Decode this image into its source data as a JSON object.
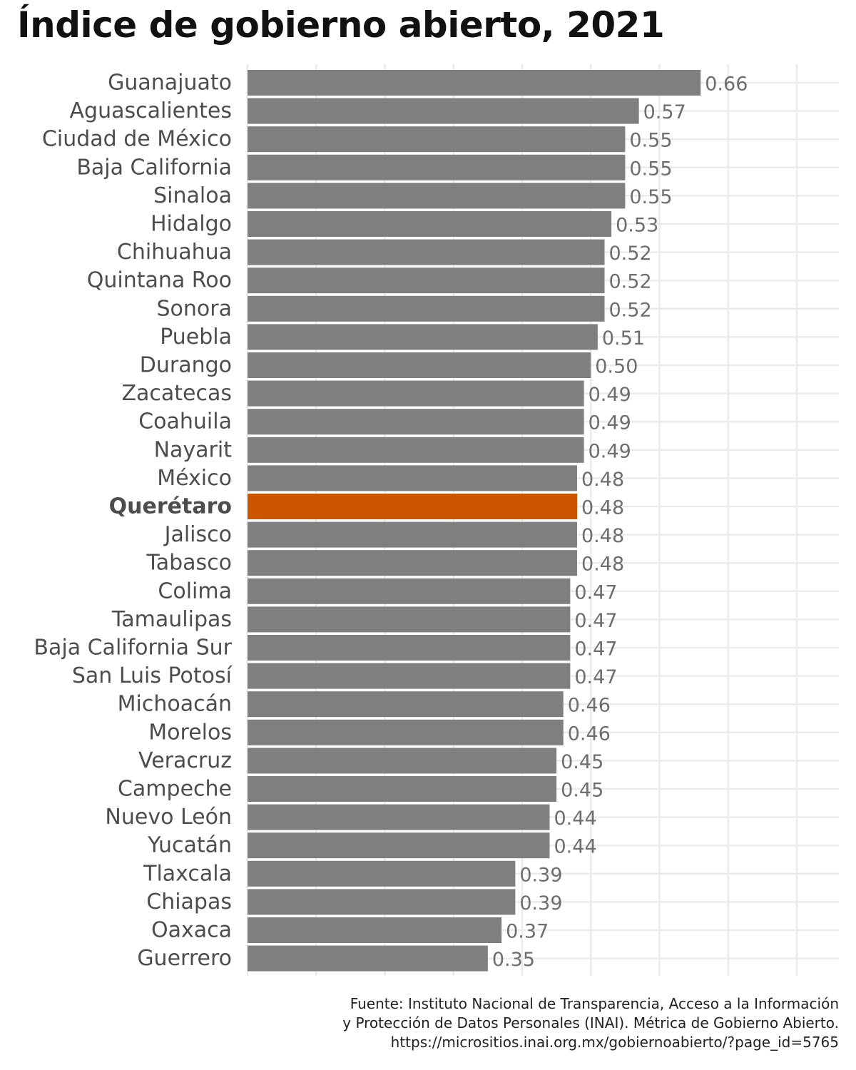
{
  "chart_data": {
    "type": "bar",
    "orientation": "horizontal",
    "title": "Índice de gobierno abierto, 2021",
    "xlabel": "",
    "ylabel": "",
    "xlim": [
      0,
      0.8
    ],
    "grid": true,
    "highlight": "Querétaro",
    "colors": {
      "bar": "#7f7f7f",
      "highlight": "#cc5500",
      "grid": "#ebebeb"
    },
    "categories": [
      "Guanajuato",
      "Aguascalientes",
      "Ciudad de México",
      "Baja California",
      "Sinaloa",
      "Hidalgo",
      "Chihuahua",
      "Quintana Roo",
      "Sonora",
      "Puebla",
      "Durango",
      "Zacatecas",
      "Coahuila",
      "Nayarit",
      "México",
      "Querétaro",
      "Jalisco",
      "Tabasco",
      "Colima",
      "Tamaulipas",
      "Baja California Sur",
      "San Luis Potosí",
      "Michoacán",
      "Morelos",
      "Veracruz",
      "Campeche",
      "Nuevo León",
      "Yucatán",
      "Tlaxcala",
      "Chiapas",
      "Oaxaca",
      "Guerrero"
    ],
    "values": [
      0.66,
      0.57,
      0.55,
      0.55,
      0.55,
      0.53,
      0.52,
      0.52,
      0.52,
      0.51,
      0.5,
      0.49,
      0.49,
      0.49,
      0.48,
      0.48,
      0.48,
      0.48,
      0.47,
      0.47,
      0.47,
      0.47,
      0.46,
      0.46,
      0.45,
      0.45,
      0.44,
      0.44,
      0.39,
      0.39,
      0.37,
      0.35
    ],
    "value_labels": [
      "0.66",
      "0.57",
      "0.55",
      "0.55",
      "0.55",
      "0.53",
      "0.52",
      "0.52",
      "0.52",
      "0.51",
      "0.50",
      "0.49",
      "0.49",
      "0.49",
      "0.48",
      "0.48",
      "0.48",
      "0.48",
      "0.47",
      "0.47",
      "0.47",
      "0.47",
      "0.46",
      "0.46",
      "0.45",
      "0.45",
      "0.44",
      "0.44",
      "0.39",
      "0.39",
      "0.37",
      "0.35"
    ]
  },
  "caption": {
    "line1": "Fuente: Instituto Nacional de Transparencia, Acceso a la Información",
    "line2": "y Protección de Datos Personales (INAI). Métrica de Gobierno Abierto.",
    "line3": "https://micrositios.inai.org.mx/gobiernoabierto/?page_id=5765"
  }
}
